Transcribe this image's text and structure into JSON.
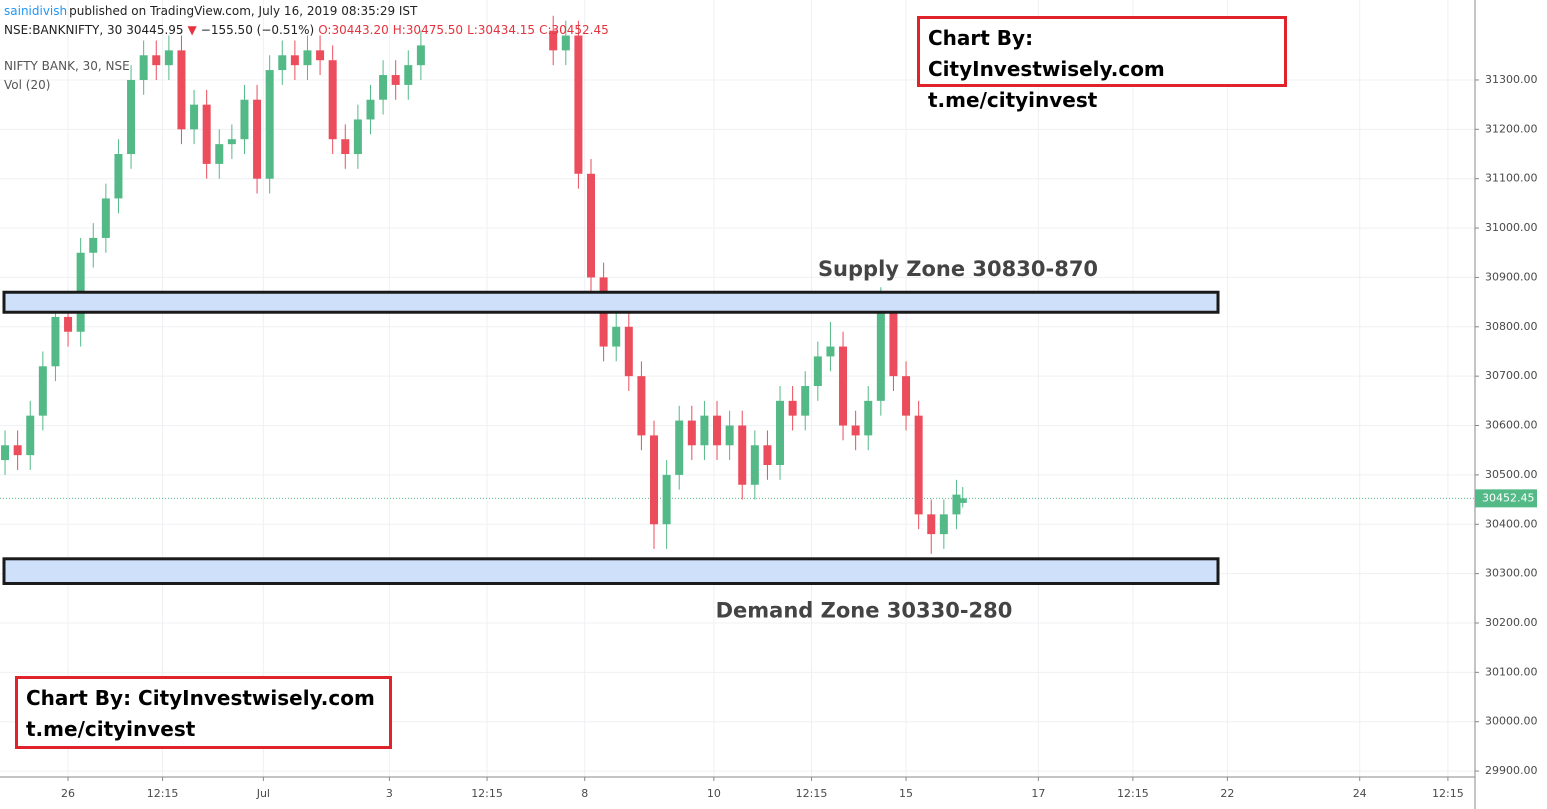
{
  "header": {
    "user": "sainidivish",
    "published": "published on TradingView.com, July 16, 2019 08:35:29 IST",
    "symbol": "NSE:BANKNIFTY, 30",
    "last": "30445.95",
    "arrow": "▼",
    "change": "−155.50 (−0.51%)",
    "open": "O:30443.20",
    "high": "H:30475.50",
    "low": "L:30434.15",
    "close": "C:30452.45"
  },
  "watermarks": [
    {
      "line1": "Chart By: CityInvestwisely.com",
      "line2": "t.me/cityinvest"
    },
    {
      "line1": "Chart By: CityInvestwisely.com",
      "line2": "t.me/cityinvest"
    }
  ],
  "chart_data": {
    "type": "candlestick",
    "legend_title": "NIFTY BANK, 30, NSE",
    "indicator": "Vol (20)",
    "up_color": "#53b987",
    "down_color": "#eb4d5c",
    "xlim": [
      -0.8,
      233.3
    ],
    "ylim": [
      29888,
      31462
    ],
    "xticks": [
      {
        "value": 10,
        "label": "26"
      },
      {
        "value": 25,
        "label": "12:15"
      },
      {
        "value": 41,
        "label": "Jul"
      },
      {
        "value": 61,
        "label": "3"
      },
      {
        "value": 76.5,
        "label": "12:15"
      },
      {
        "value": 92,
        "label": "8"
      },
      {
        "value": 112.5,
        "label": "10"
      },
      {
        "value": 128,
        "label": "12:15"
      },
      {
        "value": 143,
        "label": "15"
      },
      {
        "value": 164,
        "label": "17"
      },
      {
        "value": 179,
        "label": "12:15"
      },
      {
        "value": 194,
        "label": "22"
      },
      {
        "value": 215,
        "label": "24"
      },
      {
        "value": 229,
        "label": "12:15"
      }
    ],
    "yticks": [
      {
        "value": 29900,
        "label": "29900.00"
      },
      {
        "value": 30000,
        "label": "30000.00"
      },
      {
        "value": 30100,
        "label": "30100.00"
      },
      {
        "value": 30200,
        "label": "30200.00"
      },
      {
        "value": 30300,
        "label": "30300.00"
      },
      {
        "value": 30400,
        "label": "30400.00"
      },
      {
        "value": 30500,
        "label": "30500.00"
      },
      {
        "value": 30600,
        "label": "30600.00"
      },
      {
        "value": 30700,
        "label": "30700.00"
      },
      {
        "value": 30800,
        "label": "30800.00"
      },
      {
        "value": 30900,
        "label": "30900.00"
      },
      {
        "value": 31000,
        "label": "31000.00"
      },
      {
        "value": 31100,
        "label": "31100.00"
      },
      {
        "value": 31200,
        "label": "31200.00"
      },
      {
        "value": 31300,
        "label": "31300.00"
      }
    ],
    "last_price": 30452.45,
    "zones": [
      {
        "label": "Supply Zone 30830-870",
        "low": 30830,
        "high": 30870
      },
      {
        "label": "Demand Zone 30330-280",
        "low": 30280,
        "high": 30330
      }
    ],
    "x": [
      0,
      2,
      4,
      6,
      8,
      10,
      12,
      14,
      16,
      18,
      20,
      22,
      24,
      26,
      28,
      30,
      32,
      34,
      36,
      38,
      40,
      42,
      44,
      46,
      48,
      50,
      52,
      54,
      56,
      58,
      60,
      62,
      64,
      66,
      87,
      89,
      91,
      93,
      95,
      97,
      99,
      101,
      103,
      105,
      107,
      109,
      111,
      113,
      115,
      117,
      119,
      121,
      123,
      125,
      127,
      129,
      131,
      133,
      135,
      137,
      139,
      141,
      143,
      145,
      147,
      149,
      151,
      152
    ],
    "open": [
      30530,
      30560,
      30540,
      30620,
      30720,
      30820,
      30790,
      30950,
      30980,
      31060,
      31150,
      31300,
      31350,
      31330,
      31360,
      31200,
      31250,
      31130,
      31170,
      31180,
      31260,
      31100,
      31320,
      31350,
      31330,
      31360,
      31340,
      31180,
      31150,
      31220,
      31260,
      31310,
      31290,
      31330,
      31400,
      31360,
      31390,
      31110,
      30900,
      30760,
      30800,
      30700,
      30580,
      30400,
      30500,
      30610,
      30560,
      30620,
      30560,
      30600,
      30480,
      30560,
      30520,
      30650,
      30620,
      30680,
      30740,
      30760,
      30600,
      30580,
      30650,
      30840,
      30700,
      30620,
      30420,
      30380,
      30420,
      30443.2
    ],
    "high": [
      30590,
      30590,
      30650,
      30750,
      30850,
      30850,
      30980,
      31010,
      31090,
      31180,
      31330,
      31380,
      31380,
      31390,
      31390,
      31280,
      31280,
      31200,
      31210,
      31290,
      31290,
      31350,
      31380,
      31380,
      31390,
      31390,
      31370,
      31210,
      31250,
      31290,
      31340,
      31340,
      31360,
      31400,
      31430,
      31420,
      31420,
      31140,
      30930,
      30830,
      30830,
      30730,
      30610,
      30530,
      30640,
      30640,
      30650,
      30650,
      30630,
      30630,
      30590,
      30590,
      30680,
      30680,
      30710,
      30770,
      30810,
      30790,
      30630,
      30680,
      30880,
      30870,
      30730,
      30650,
      30450,
      30450,
      30490,
      30475.5
    ],
    "low": [
      30500,
      30510,
      30510,
      30590,
      30690,
      30760,
      30760,
      30920,
      30950,
      31030,
      31120,
      31270,
      31300,
      31300,
      31170,
      31170,
      31100,
      31100,
      31140,
      31150,
      31070,
      31070,
      31290,
      31300,
      31300,
      31310,
      31150,
      31120,
      31120,
      31190,
      31230,
      31260,
      31260,
      31300,
      31330,
      31330,
      31080,
      30870,
      30730,
      30730,
      30670,
      30550,
      30350,
      30350,
      30470,
      30530,
      30530,
      30530,
      30530,
      30450,
      30450,
      30490,
      30490,
      30590,
      30590,
      30650,
      30710,
      30570,
      30550,
      30550,
      30620,
      30670,
      30590,
      30390,
      30340,
      30350,
      30390,
      30434.15
    ],
    "close": [
      30560,
      30540,
      30620,
      30720,
      30820,
      30790,
      30950,
      30980,
      31060,
      31150,
      31300,
      31350,
      31330,
      31360,
      31200,
      31250,
      31130,
      31170,
      31180,
      31260,
      31100,
      31320,
      31350,
      31330,
      31360,
      31340,
      31180,
      31150,
      31220,
      31260,
      31310,
      31290,
      31330,
      31370,
      31360,
      31390,
      31110,
      30900,
      30760,
      30800,
      30700,
      30580,
      30400,
      30500,
      30610,
      30560,
      30620,
      30560,
      30600,
      30480,
      30560,
      30520,
      30650,
      30620,
      30680,
      30740,
      30760,
      30600,
      30580,
      30650,
      30840,
      30700,
      30620,
      30420,
      30380,
      30420,
      30460,
      30452.45
    ]
  }
}
